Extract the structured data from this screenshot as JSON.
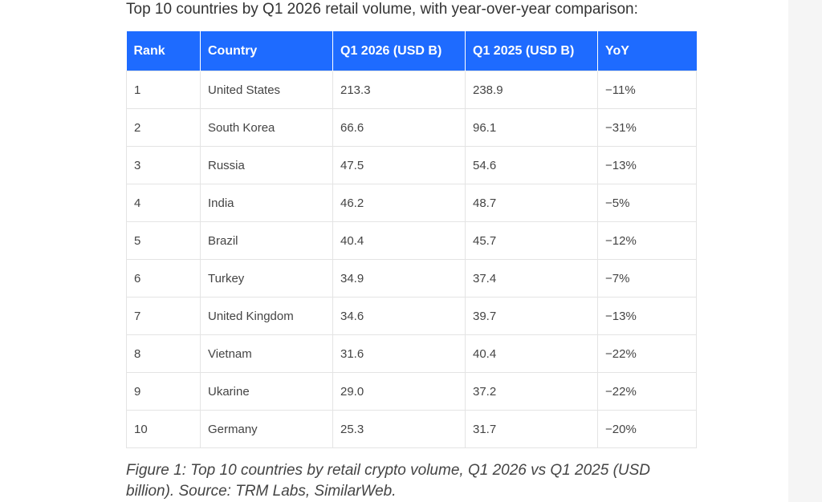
{
  "intro_text": "Top 10 countries by Q1 2026 retail volume, with year-over-year comparison:",
  "table": {
    "headers": [
      "Rank",
      "Country",
      "Q1 2026 (USD B)",
      "Q1 2025 (USD B)",
      "YoY"
    ],
    "rows": [
      [
        "1",
        "United States",
        "213.3",
        "238.9",
        "−11%"
      ],
      [
        "2",
        "South Korea",
        "66.6",
        "96.1",
        "−31%"
      ],
      [
        "3",
        "Russia",
        "47.5",
        "54.6",
        "−13%"
      ],
      [
        "4",
        "India",
        "46.2",
        "48.7",
        "−5%"
      ],
      [
        "5",
        "Brazil",
        "40.4",
        "45.7",
        "−12%"
      ],
      [
        "6",
        "Turkey",
        "34.9",
        "37.4",
        "−7%"
      ],
      [
        "7",
        "United Kingdom",
        "34.6",
        "39.7",
        "−13%"
      ],
      [
        "8",
        "Vietnam",
        "31.6",
        "40.4",
        "−22%"
      ],
      [
        "9",
        "Ukarine",
        "29.0",
        "37.2",
        "−22%"
      ],
      [
        "10",
        "Germany",
        "25.3",
        "31.7",
        "−20%"
      ]
    ]
  },
  "caption": "Figure 1: Top 10 countries by retail crypto volume, Q1 2026 vs Q1 2025 (USD billion). Source: TRM Labs, SimilarWeb.",
  "colors": {
    "header_background": "#1e6bff",
    "header_text": "#ffffff",
    "border": "#e4e4e4"
  }
}
